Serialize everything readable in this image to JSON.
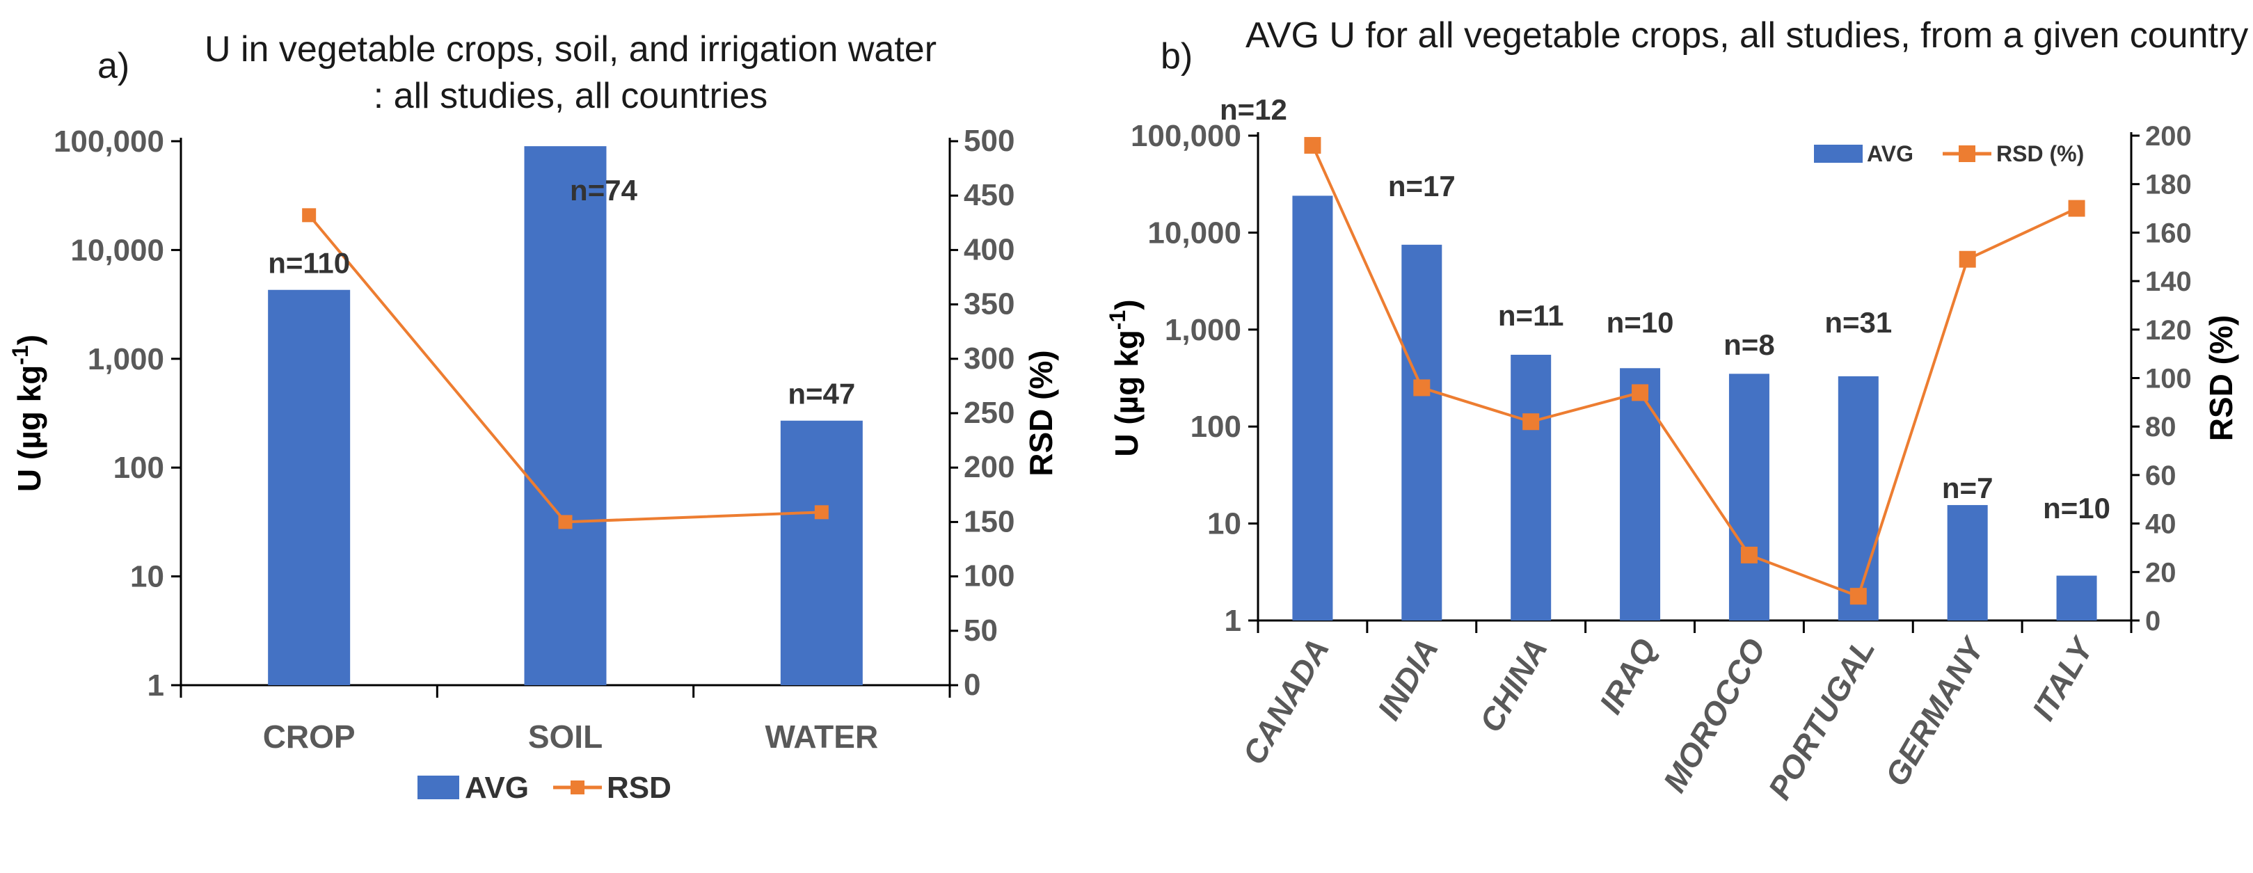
{
  "chart_data": [
    {
      "panel_label": "a)",
      "type": "bar+line",
      "title_lines": [
        "U in vegetable crops, soil, and irrigation water",
        ": all studies, all countries"
      ],
      "categories": [
        "CROP",
        "SOIL",
        "WATER"
      ],
      "series": [
        {
          "name": "AVG",
          "type": "bar",
          "axis": "left",
          "color": "#4472C4",
          "values": [
            4300,
            90000,
            270
          ]
        },
        {
          "name": "RSD",
          "type": "line",
          "axis": "right",
          "color": "#ED7D31",
          "values": [
            432,
            150,
            159
          ]
        }
      ],
      "annotations": [
        "n=110",
        "n=74",
        "n=47"
      ],
      "ylabel": "U (µg kg",
      "ylabel_sup": "-1",
      "ylabel_close": ")",
      "y2label": "RSD (%)",
      "yscale": "log",
      "ylim": [
        1,
        100000
      ],
      "y_ticks": [
        "1",
        "10",
        "100",
        "1,000",
        "10,000",
        "100,000"
      ],
      "y2lim": [
        0,
        500
      ],
      "y2_ticks": [
        "0",
        "50",
        "100",
        "150",
        "200",
        "250",
        "300",
        "350",
        "400",
        "450",
        "500"
      ],
      "legend_labels": [
        "AVG",
        "RSD"
      ],
      "legend_position": "bottom"
    },
    {
      "panel_label": "b)",
      "type": "bar+line",
      "title_lines": [
        "AVG U for all vegetable crops, all studies, from a given country"
      ],
      "categories": [
        "CANADA",
        "INDIA",
        "CHINA",
        "IRAQ",
        "MOROCCO",
        "PORTUGAL",
        "GERMANY",
        "ITALY"
      ],
      "series": [
        {
          "name": "AVG",
          "type": "bar",
          "axis": "left",
          "color": "#4472C4",
          "values": [
            24000,
            7500,
            550,
            400,
            350,
            330,
            15.5,
            2.9
          ]
        },
        {
          "name": "RSD (%)",
          "type": "line",
          "axis": "right",
          "color": "#ED7D31",
          "values": [
            196,
            96,
            82,
            94,
            27,
            10,
            149,
            170
          ]
        }
      ],
      "annotations": [
        "n=12",
        "n=17",
        "n=11",
        "n=10",
        "n=8",
        "n=31",
        "n=7",
        "n=10"
      ],
      "ylabel": "U (µg kg",
      "ylabel_sup": "-1",
      "ylabel_close": ")",
      "y2label": "RSD (%)",
      "yscale": "log",
      "ylim": [
        1,
        100000
      ],
      "y_ticks": [
        "1",
        "10",
        "100",
        "1,000",
        "10,000",
        "100,000"
      ],
      "y2lim": [
        0,
        200
      ],
      "y2_ticks": [
        "0",
        "20",
        "40",
        "60",
        "80",
        "100",
        "120",
        "140",
        "160",
        "180",
        "200"
      ],
      "legend_labels": [
        "AVG",
        "RSD (%)"
      ],
      "legend_position": "top-right"
    }
  ]
}
